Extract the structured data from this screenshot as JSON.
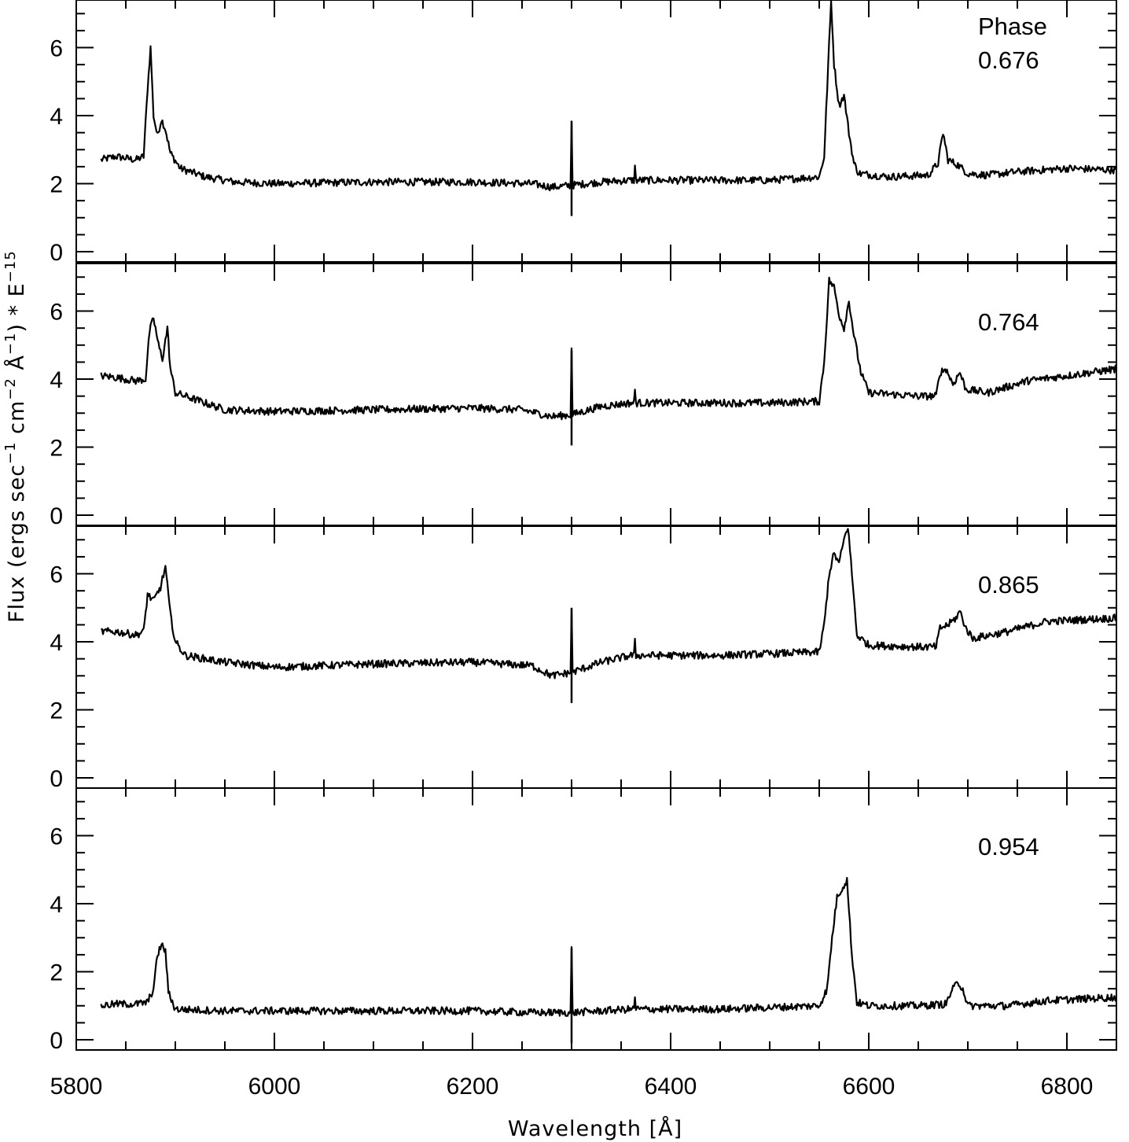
{
  "chart_data": {
    "type": "line",
    "xlabel": "Wavelength [Å]",
    "ylabel_main": "Flux (ergs sec",
    "ylabel_sup1": "−1",
    "ylabel_mid1": " cm",
    "ylabel_sup2": "−2",
    "ylabel_mid2": " Å",
    "ylabel_sup3": "−1",
    "ylabel_mid3": ") * E",
    "ylabel_sup4": "−15",
    "xlim": [
      5800,
      6850
    ],
    "ylim": [
      -0.3,
      7.4
    ],
    "x_ticks": [
      "5800",
      "6000",
      "6200",
      "6400",
      "6600",
      "6800"
    ],
    "y_ticks": [
      "0",
      "2",
      "4",
      "6"
    ],
    "annotation_header": "Phase",
    "panels": [
      {
        "phase": "0.676",
        "points": [
          [
            5825,
            2.7
          ],
          [
            5840,
            2.8
          ],
          [
            5860,
            2.7
          ],
          [
            5868,
            2.8
          ],
          [
            5872,
            4.8
          ],
          [
            5875,
            6.0
          ],
          [
            5878,
            4.0
          ],
          [
            5882,
            3.4
          ],
          [
            5886,
            3.9
          ],
          [
            5890,
            3.6
          ],
          [
            5895,
            2.9
          ],
          [
            5905,
            2.45
          ],
          [
            5930,
            2.2
          ],
          [
            5960,
            2.05
          ],
          [
            6000,
            2.0
          ],
          [
            6100,
            2.05
          ],
          [
            6200,
            2.05
          ],
          [
            6260,
            2.0
          ],
          [
            6280,
            1.9
          ],
          [
            6300,
            1.95
          ],
          [
            6330,
            2.05
          ],
          [
            6360,
            2.1
          ],
          [
            6450,
            2.1
          ],
          [
            6500,
            2.1
          ],
          [
            6550,
            2.2
          ],
          [
            6555,
            2.8
          ],
          [
            6558,
            4.8
          ],
          [
            6562,
            7.4
          ],
          [
            6565,
            5.5
          ],
          [
            6570,
            4.3
          ],
          [
            6575,
            4.6
          ],
          [
            6580,
            3.5
          ],
          [
            6585,
            2.6
          ],
          [
            6590,
            2.3
          ],
          [
            6620,
            2.2
          ],
          [
            6660,
            2.25
          ],
          [
            6670,
            2.6
          ],
          [
            6675,
            3.5
          ],
          [
            6680,
            2.7
          ],
          [
            6690,
            2.55
          ],
          [
            6700,
            2.3
          ],
          [
            6720,
            2.25
          ],
          [
            6750,
            2.35
          ],
          [
            6800,
            2.45
          ],
          [
            6850,
            2.4
          ]
        ]
      },
      {
        "phase": "0.764",
        "points": [
          [
            5825,
            4.1
          ],
          [
            5840,
            4.05
          ],
          [
            5860,
            3.95
          ],
          [
            5870,
            4.0
          ],
          [
            5874,
            5.4
          ],
          [
            5878,
            5.8
          ],
          [
            5883,
            5.0
          ],
          [
            5887,
            4.6
          ],
          [
            5892,
            5.5
          ],
          [
            5895,
            4.3
          ],
          [
            5900,
            3.6
          ],
          [
            5920,
            3.4
          ],
          [
            5950,
            3.1
          ],
          [
            6000,
            3.05
          ],
          [
            6100,
            3.1
          ],
          [
            6200,
            3.15
          ],
          [
            6250,
            3.1
          ],
          [
            6280,
            2.9
          ],
          [
            6300,
            2.95
          ],
          [
            6330,
            3.2
          ],
          [
            6360,
            3.3
          ],
          [
            6450,
            3.3
          ],
          [
            6500,
            3.3
          ],
          [
            6550,
            3.35
          ],
          [
            6555,
            4.5
          ],
          [
            6560,
            6.9
          ],
          [
            6565,
            6.7
          ],
          [
            6570,
            5.9
          ],
          [
            6575,
            5.5
          ],
          [
            6580,
            6.3
          ],
          [
            6585,
            5.3
          ],
          [
            6592,
            4.2
          ],
          [
            6600,
            3.6
          ],
          [
            6650,
            3.5
          ],
          [
            6668,
            3.5
          ],
          [
            6672,
            4.2
          ],
          [
            6678,
            4.3
          ],
          [
            6685,
            3.85
          ],
          [
            6692,
            4.2
          ],
          [
            6698,
            3.7
          ],
          [
            6720,
            3.6
          ],
          [
            6760,
            3.95
          ],
          [
            6800,
            4.1
          ],
          [
            6850,
            4.3
          ]
        ]
      },
      {
        "phase": "0.865",
        "points": [
          [
            5825,
            4.3
          ],
          [
            5840,
            4.3
          ],
          [
            5860,
            4.2
          ],
          [
            5868,
            4.3
          ],
          [
            5872,
            5.4
          ],
          [
            5878,
            5.2
          ],
          [
            5885,
            5.6
          ],
          [
            5890,
            6.2
          ],
          [
            5895,
            4.8
          ],
          [
            5900,
            4.0
          ],
          [
            5910,
            3.6
          ],
          [
            5950,
            3.4
          ],
          [
            6000,
            3.25
          ],
          [
            6100,
            3.35
          ],
          [
            6200,
            3.4
          ],
          [
            6260,
            3.3
          ],
          [
            6280,
            3.0
          ],
          [
            6300,
            3.1
          ],
          [
            6330,
            3.4
          ],
          [
            6360,
            3.6
          ],
          [
            6450,
            3.6
          ],
          [
            6500,
            3.65
          ],
          [
            6550,
            3.7
          ],
          [
            6555,
            4.5
          ],
          [
            6560,
            6.0
          ],
          [
            6565,
            6.6
          ],
          [
            6570,
            6.3
          ],
          [
            6575,
            7.0
          ],
          [
            6579,
            7.4
          ],
          [
            6583,
            6.0
          ],
          [
            6588,
            4.2
          ],
          [
            6600,
            3.9
          ],
          [
            6650,
            3.85
          ],
          [
            6668,
            3.85
          ],
          [
            6672,
            4.4
          ],
          [
            6680,
            4.5
          ],
          [
            6688,
            4.7
          ],
          [
            6692,
            4.9
          ],
          [
            6698,
            4.4
          ],
          [
            6705,
            4.1
          ],
          [
            6740,
            4.3
          ],
          [
            6780,
            4.6
          ],
          [
            6850,
            4.7
          ]
        ]
      },
      {
        "phase": "0.954",
        "points": [
          [
            5825,
            1.0
          ],
          [
            5840,
            1.05
          ],
          [
            5860,
            1.05
          ],
          [
            5872,
            1.1
          ],
          [
            5878,
            1.5
          ],
          [
            5882,
            2.5
          ],
          [
            5886,
            2.8
          ],
          [
            5890,
            2.6
          ],
          [
            5893,
            1.4
          ],
          [
            5900,
            0.9
          ],
          [
            5950,
            0.85
          ],
          [
            6000,
            0.85
          ],
          [
            6100,
            0.85
          ],
          [
            6200,
            0.85
          ],
          [
            6260,
            0.8
          ],
          [
            6280,
            0.8
          ],
          [
            6300,
            0.8
          ],
          [
            6330,
            0.85
          ],
          [
            6360,
            0.9
          ],
          [
            6450,
            0.9
          ],
          [
            6550,
            1.0
          ],
          [
            6558,
            1.5
          ],
          [
            6563,
            3.0
          ],
          [
            6568,
            4.2
          ],
          [
            6574,
            4.5
          ],
          [
            6578,
            4.7
          ],
          [
            6583,
            2.5
          ],
          [
            6588,
            1.1
          ],
          [
            6600,
            1.0
          ],
          [
            6650,
            1.0
          ],
          [
            6678,
            1.05
          ],
          [
            6683,
            1.4
          ],
          [
            6690,
            1.7
          ],
          [
            6695,
            1.5
          ],
          [
            6700,
            1.0
          ],
          [
            6740,
            1.0
          ],
          [
            6780,
            1.15
          ],
          [
            6850,
            1.25
          ]
        ]
      }
    ]
  }
}
